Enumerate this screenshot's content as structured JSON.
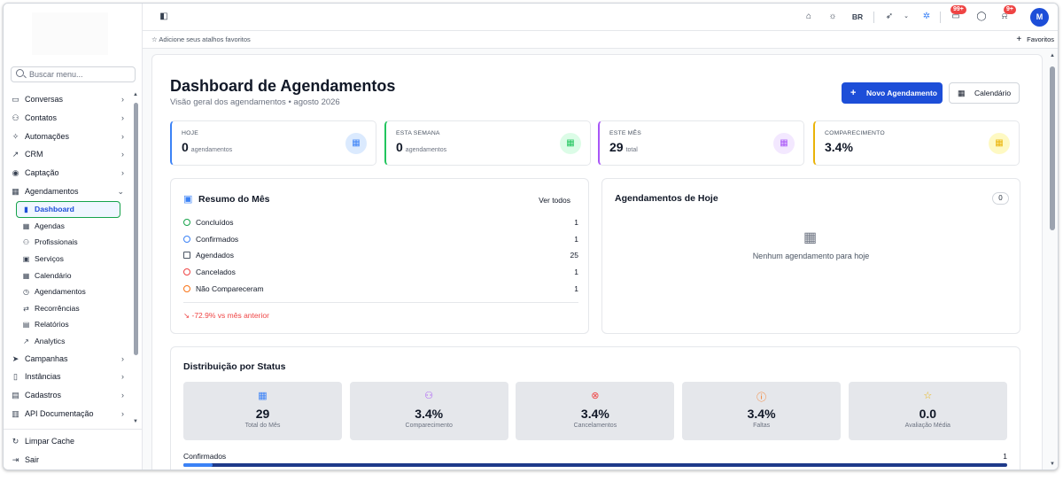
{
  "sidebar": {
    "search_placeholder": "Buscar menu...",
    "items": [
      {
        "label": "Conversas",
        "icon": "chat-icon",
        "glyph": "▭"
      },
      {
        "label": "Contatos",
        "icon": "users-icon",
        "glyph": "⚇"
      },
      {
        "label": "Automações",
        "icon": "zap-icon",
        "glyph": "✧"
      },
      {
        "label": "CRM",
        "icon": "trend-icon",
        "glyph": "↗"
      },
      {
        "label": "Captação",
        "icon": "target-icon",
        "glyph": "◉"
      },
      {
        "label": "Agendamentos",
        "icon": "calendar-icon",
        "glyph": "▦"
      }
    ],
    "sub_items": [
      {
        "label": "Dashboard",
        "icon": "bar-chart-icon",
        "glyph": "▮"
      },
      {
        "label": "Agendas",
        "icon": "calendar-icon",
        "glyph": "▦"
      },
      {
        "label": "Profissionais",
        "icon": "users-icon",
        "glyph": "⚇"
      },
      {
        "label": "Serviços",
        "icon": "briefcase-icon",
        "glyph": "▣"
      },
      {
        "label": "Calendário",
        "icon": "calendar-icon",
        "glyph": "▦"
      },
      {
        "label": "Agendamentos",
        "icon": "clock-icon",
        "glyph": "◷"
      },
      {
        "label": "Recorrências",
        "icon": "repeat-icon",
        "glyph": "⇄"
      },
      {
        "label": "Relatórios",
        "icon": "file-icon",
        "glyph": "▤"
      },
      {
        "label": "Analytics",
        "icon": "trend-icon",
        "glyph": "↗"
      }
    ],
    "items_after": [
      {
        "label": "Campanhas",
        "icon": "send-icon",
        "glyph": "➤"
      },
      {
        "label": "Instâncias",
        "icon": "phone-icon",
        "glyph": "▯"
      },
      {
        "label": "Cadastros",
        "icon": "database-icon",
        "glyph": "▤"
      },
      {
        "label": "API Documentação",
        "icon": "book-icon",
        "glyph": "▥"
      }
    ],
    "bottom": [
      {
        "label": "Limpar Cache",
        "icon": "refresh-icon",
        "glyph": "↻"
      },
      {
        "label": "Sair",
        "icon": "logout-icon",
        "glyph": "⇥"
      }
    ]
  },
  "topbar": {
    "lang": "BR",
    "messages_badge": "99+",
    "notifications_badge": "9+",
    "avatar": "M"
  },
  "favbar": {
    "hint": "Adicione seus atalhos favoritos",
    "favorites": "Favoritos"
  },
  "page": {
    "title": "Dashboard de Agendamentos",
    "subtitle": "Visão geral dos agendamentos • agosto 2026",
    "new_button": "Novo Agendamento",
    "calendar_button": "Calendário"
  },
  "stats": [
    {
      "label": "HOJE",
      "value": "0",
      "unit": "agendamentos",
      "color": "#3b82f6",
      "bg": "#dbeafe",
      "icon": "calendar-check-icon"
    },
    {
      "label": "ESTA SEMANA",
      "value": "0",
      "unit": "agendamentos",
      "color": "#22c55e",
      "bg": "#dcfce7",
      "icon": "calendar-icon"
    },
    {
      "label": "ESTE MÊS",
      "value": "29",
      "unit": "total",
      "color": "#a855f7",
      "bg": "#f3e8ff",
      "icon": "calendar-icon"
    },
    {
      "label": "COMPARECIMENTO",
      "value": "3.4%",
      "unit": "",
      "color": "#eab308",
      "bg": "#fef9c3",
      "icon": "user-check-icon"
    }
  ],
  "summary": {
    "title": "Resumo do Mês",
    "link": "Ver todos",
    "rows": [
      {
        "label": "Concluídos",
        "value": "1",
        "color": "#16a34a"
      },
      {
        "label": "Confirmados",
        "value": "1",
        "color": "#3b82f6"
      },
      {
        "label": "Agendados",
        "value": "25",
        "color": "#4b5563"
      },
      {
        "label": "Cancelados",
        "value": "1",
        "color": "#ef4444"
      },
      {
        "label": "Não Compareceram",
        "value": "1",
        "color": "#f97316"
      }
    ],
    "trend": "-72.9% vs mês anterior"
  },
  "today": {
    "title": "Agendamentos de Hoje",
    "count": "0",
    "empty": "Nenhum agendamento para hoje"
  },
  "distribution": {
    "title": "Distribuição por Status",
    "cards": [
      {
        "value": "29",
        "label": "Total do Mês",
        "color": "#3b82f6",
        "glyph": "▦"
      },
      {
        "value": "3.4%",
        "label": "Comparecimento",
        "color": "#a855f7",
        "glyph": "⚇"
      },
      {
        "value": "3.4%",
        "label": "Cancelamentos",
        "color": "#ef4444",
        "glyph": "⊗"
      },
      {
        "value": "3.4%",
        "label": "Faltas",
        "color": "#f97316",
        "glyph": "ⓘ"
      },
      {
        "value": "0.0",
        "label": "Avaliação Média",
        "color": "#eab308",
        "glyph": "☆"
      }
    ],
    "bar_label": "Confirmados",
    "bar_value": "1",
    "bar_fill": 0.035
  }
}
